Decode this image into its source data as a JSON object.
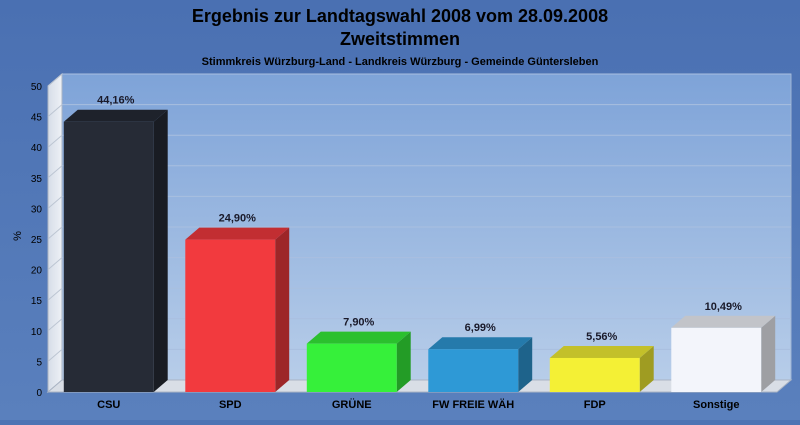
{
  "chart_data": {
    "type": "bar",
    "title": "Ergebnis zur Landtagswahl 2008 vom 28.09.2008",
    "title_line2": "Zweitstimmen",
    "subtitle": "Stimmkreis Würzburg-Land - Landkreis Würzburg - Gemeinde Güntersleben",
    "xlabel": "",
    "ylabel": "%",
    "ylim": [
      0,
      50
    ],
    "yticks": [
      "0",
      "5",
      "10",
      "15",
      "20",
      "25",
      "30",
      "35",
      "40",
      "45",
      "50"
    ],
    "grid": true,
    "categories": [
      "CSU",
      "SPD",
      "GRÜNE",
      "FW FREIE WÄH",
      "FDP",
      "Sonstige"
    ],
    "values": [
      44.16,
      24.9,
      7.9,
      6.99,
      5.56,
      10.49
    ],
    "value_labels": [
      "44,16%",
      "24,90%",
      "7,90%",
      "6,99%",
      "5,56%",
      "10,49%"
    ],
    "colors": [
      "#262b36",
      "#f23a3e",
      "#36f03a",
      "#2e99d6",
      "#f4f035",
      "#f3f5fb"
    ]
  }
}
